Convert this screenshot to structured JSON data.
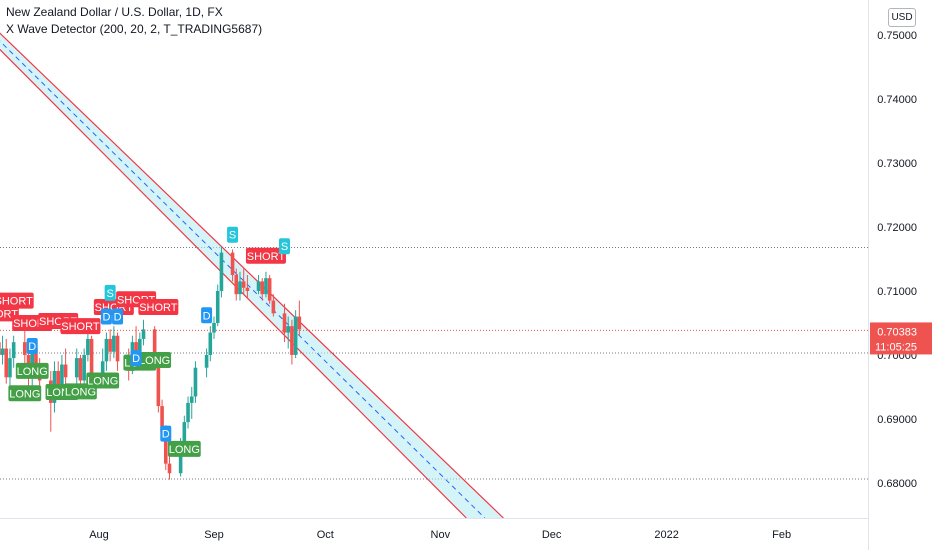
{
  "legend": {
    "symbol": "New Zealand Dollar / U.S. Dollar, 1D, FX",
    "indicator": "X Wave Detector (200, 20, 2, T_TRADING5687)"
  },
  "currency_button": "USD",
  "price_label": {
    "price": "0.70383",
    "countdown": "11:05:25"
  },
  "colors": {
    "up": "#26a69a",
    "down": "#ef5350",
    "channel_line": "#f23645",
    "channel_fill": "#b2ebf2",
    "channel_mid": "#2962ff",
    "short_tag": "#f23645",
    "long_tag": "#43a047",
    "s_tag": "#26c6da",
    "d_tag": "#2196f3"
  },
  "chart_data": {
    "type": "candlestick",
    "y_axis": {
      "range": [
        0.6745,
        0.7555
      ],
      "ticks": [
        "0.75000",
        "0.74000",
        "0.73000",
        "0.72000",
        "0.71000",
        "0.70000",
        "0.69000",
        "0.68000"
      ]
    },
    "x_axis": {
      "labels": [
        {
          "label": "Aug",
          "date": "2021-08-01"
        },
        {
          "label": "Sep",
          "date": "2021-09-01"
        },
        {
          "label": "Oct",
          "date": "2021-10-01"
        },
        {
          "label": "Nov",
          "date": "2021-11-01"
        },
        {
          "label": "Dec",
          "date": "2021-12-01"
        },
        {
          "label": "2022",
          "date": "2022-01-01"
        },
        {
          "label": "Feb",
          "date": "2022-02-01"
        }
      ]
    },
    "last_price": 0.70383,
    "horizontal_levels": [
      0.7168,
      0.7003,
      0.6806
    ],
    "candles": [
      {
        "date": "2021-07-05",
        "o": 0.702,
        "h": 0.7055,
        "l": 0.699,
        "c": 0.7
      },
      {
        "date": "2021-07-06",
        "o": 0.7,
        "h": 0.703,
        "l": 0.6985,
        "c": 0.701
      },
      {
        "date": "2021-07-07",
        "o": 0.701,
        "h": 0.7025,
        "l": 0.6955,
        "c": 0.6965
      },
      {
        "date": "2021-07-08",
        "o": 0.6965,
        "h": 0.701,
        "l": 0.695,
        "c": 0.6995
      },
      {
        "date": "2021-07-09",
        "o": 0.6995,
        "h": 0.703,
        "l": 0.698,
        "c": 0.702
      },
      {
        "date": "2021-07-12",
        "o": 0.702,
        "h": 0.704,
        "l": 0.6985,
        "c": 0.7
      },
      {
        "date": "2021-07-13",
        "o": 0.7,
        "h": 0.7015,
        "l": 0.695,
        "c": 0.6965
      },
      {
        "date": "2021-07-14",
        "o": 0.6965,
        "h": 0.702,
        "l": 0.6945,
        "c": 0.701
      },
      {
        "date": "2021-07-15",
        "o": 0.701,
        "h": 0.7025,
        "l": 0.697,
        "c": 0.6985
      },
      {
        "date": "2021-07-16",
        "o": 0.6985,
        "h": 0.6995,
        "l": 0.6945,
        "c": 0.696
      },
      {
        "date": "2021-07-19",
        "o": 0.696,
        "h": 0.6975,
        "l": 0.688,
        "c": 0.6925
      },
      {
        "date": "2021-07-20",
        "o": 0.6925,
        "h": 0.699,
        "l": 0.691,
        "c": 0.6975
      },
      {
        "date": "2021-07-21",
        "o": 0.6975,
        "h": 0.699,
        "l": 0.693,
        "c": 0.695
      },
      {
        "date": "2021-07-22",
        "o": 0.695,
        "h": 0.7,
        "l": 0.694,
        "c": 0.6985
      },
      {
        "date": "2021-07-23",
        "o": 0.6985,
        "h": 0.701,
        "l": 0.6955,
        "c": 0.6965
      },
      {
        "date": "2021-07-26",
        "o": 0.6965,
        "h": 0.701,
        "l": 0.695,
        "c": 0.6995
      },
      {
        "date": "2021-07-27",
        "o": 0.6995,
        "h": 0.7,
        "l": 0.694,
        "c": 0.696
      },
      {
        "date": "2021-07-28",
        "o": 0.696,
        "h": 0.701,
        "l": 0.6955,
        "c": 0.7
      },
      {
        "date": "2021-07-29",
        "o": 0.7,
        "h": 0.7035,
        "l": 0.699,
        "c": 0.7025
      },
      {
        "date": "2021-07-30",
        "o": 0.7025,
        "h": 0.703,
        "l": 0.695,
        "c": 0.6965
      },
      {
        "date": "2021-08-02",
        "o": 0.6965,
        "h": 0.701,
        "l": 0.6955,
        "c": 0.699
      },
      {
        "date": "2021-08-03",
        "o": 0.699,
        "h": 0.7035,
        "l": 0.6975,
        "c": 0.7025
      },
      {
        "date": "2021-08-04",
        "o": 0.7025,
        "h": 0.704,
        "l": 0.699,
        "c": 0.7005
      },
      {
        "date": "2021-08-05",
        "o": 0.7005,
        "h": 0.7045,
        "l": 0.6995,
        "c": 0.703
      },
      {
        "date": "2021-08-06",
        "o": 0.703,
        "h": 0.7035,
        "l": 0.6975,
        "c": 0.699
      },
      {
        "date": "2021-08-09",
        "o": 0.699,
        "h": 0.701,
        "l": 0.696,
        "c": 0.6975
      },
      {
        "date": "2021-08-10",
        "o": 0.6975,
        "h": 0.703,
        "l": 0.697,
        "c": 0.702
      },
      {
        "date": "2021-08-11",
        "o": 0.702,
        "h": 0.7045,
        "l": 0.699,
        "c": 0.7
      },
      {
        "date": "2021-08-12",
        "o": 0.7,
        "h": 0.7035,
        "l": 0.6995,
        "c": 0.7025
      },
      {
        "date": "2021-08-13",
        "o": 0.7025,
        "h": 0.7055,
        "l": 0.7015,
        "c": 0.704
      },
      {
        "date": "2021-08-16",
        "o": 0.704,
        "h": 0.7045,
        "l": 0.6985,
        "c": 0.6995
      },
      {
        "date": "2021-08-17",
        "o": 0.6995,
        "h": 0.7,
        "l": 0.691,
        "c": 0.692
      },
      {
        "date": "2021-08-18",
        "o": 0.692,
        "h": 0.693,
        "l": 0.6865,
        "c": 0.688
      },
      {
        "date": "2021-08-19",
        "o": 0.688,
        "h": 0.689,
        "l": 0.682,
        "c": 0.683
      },
      {
        "date": "2021-08-20",
        "o": 0.683,
        "h": 0.6845,
        "l": 0.6805,
        "c": 0.6815
      },
      {
        "date": "2021-08-23",
        "o": 0.6815,
        "h": 0.687,
        "l": 0.681,
        "c": 0.686
      },
      {
        "date": "2021-08-24",
        "o": 0.686,
        "h": 0.6905,
        "l": 0.685,
        "c": 0.6895
      },
      {
        "date": "2021-08-25",
        "o": 0.6895,
        "h": 0.6935,
        "l": 0.6885,
        "c": 0.6925
      },
      {
        "date": "2021-08-26",
        "o": 0.6925,
        "h": 0.695,
        "l": 0.69,
        "c": 0.6935
      },
      {
        "date": "2021-08-27",
        "o": 0.6935,
        "h": 0.699,
        "l": 0.6925,
        "c": 0.698
      },
      {
        "date": "2021-08-30",
        "o": 0.698,
        "h": 0.701,
        "l": 0.6965,
        "c": 0.7
      },
      {
        "date": "2021-08-31",
        "o": 0.7,
        "h": 0.7045,
        "l": 0.699,
        "c": 0.7035
      },
      {
        "date": "2021-09-01",
        "o": 0.7035,
        "h": 0.706,
        "l": 0.7025,
        "c": 0.705
      },
      {
        "date": "2021-09-02",
        "o": 0.705,
        "h": 0.711,
        "l": 0.7045,
        "c": 0.71
      },
      {
        "date": "2021-09-03",
        "o": 0.71,
        "h": 0.717,
        "l": 0.709,
        "c": 0.716
      },
      {
        "date": "2021-09-06",
        "o": 0.716,
        "h": 0.7165,
        "l": 0.7115,
        "c": 0.7125
      },
      {
        "date": "2021-09-07",
        "o": 0.7125,
        "h": 0.7135,
        "l": 0.7085,
        "c": 0.7095
      },
      {
        "date": "2021-09-08",
        "o": 0.7095,
        "h": 0.713,
        "l": 0.7085,
        "c": 0.7115
      },
      {
        "date": "2021-09-09",
        "o": 0.7115,
        "h": 0.7135,
        "l": 0.7095,
        "c": 0.7105
      },
      {
        "date": "2021-09-10",
        "o": 0.7105,
        "h": 0.7125,
        "l": 0.709,
        "c": 0.71
      },
      {
        "date": "2021-09-13",
        "o": 0.71,
        "h": 0.7125,
        "l": 0.7095,
        "c": 0.7115
      },
      {
        "date": "2021-09-14",
        "o": 0.7115,
        "h": 0.712,
        "l": 0.7085,
        "c": 0.7095
      },
      {
        "date": "2021-09-15",
        "o": 0.7095,
        "h": 0.713,
        "l": 0.709,
        "c": 0.712
      },
      {
        "date": "2021-09-16",
        "o": 0.712,
        "h": 0.7125,
        "l": 0.708,
        "c": 0.7085
      },
      {
        "date": "2021-09-17",
        "o": 0.7085,
        "h": 0.7095,
        "l": 0.706,
        "c": 0.7065
      },
      {
        "date": "2021-09-20",
        "o": 0.7065,
        "h": 0.708,
        "l": 0.702,
        "c": 0.7035
      },
      {
        "date": "2021-09-21",
        "o": 0.7035,
        "h": 0.706,
        "l": 0.701,
        "c": 0.7045
      },
      {
        "date": "2021-09-22",
        "o": 0.7045,
        "h": 0.7055,
        "l": 0.6985,
        "c": 0.7
      },
      {
        "date": "2021-09-23",
        "o": 0.7,
        "h": 0.707,
        "l": 0.6995,
        "c": 0.706
      },
      {
        "date": "2021-09-24",
        "o": 0.706,
        "h": 0.7085,
        "l": 0.703,
        "c": 0.704
      }
    ],
    "channel": {
      "upper": [
        {
          "date": "2021-06-26",
          "value": 0.7555
        },
        {
          "date": "2021-11-18",
          "value": 0.6745
        }
      ],
      "lower": [
        {
          "date": "2021-06-22",
          "value": 0.7555
        },
        {
          "date": "2021-11-08",
          "value": 0.6745
        }
      ],
      "middle": [
        {
          "date": "2021-06-24",
          "value": 0.7555
        },
        {
          "date": "2021-11-13",
          "value": 0.6745
        }
      ]
    },
    "annotations": [
      {
        "text": "SHORT",
        "kind": "short",
        "date": "2021-07-05",
        "price": 0.7065
      },
      {
        "text": "SHORT",
        "kind": "short",
        "date": "2021-07-09",
        "price": 0.7085
      },
      {
        "text": "SHORT",
        "kind": "short",
        "date": "2021-07-14",
        "price": 0.705
      },
      {
        "text": "SHORT",
        "kind": "short",
        "date": "2021-07-21",
        "price": 0.7053
      },
      {
        "text": "SHORT",
        "kind": "short",
        "date": "2021-07-27",
        "price": 0.7045
      },
      {
        "text": "SHORT",
        "kind": "short",
        "date": "2021-08-05",
        "price": 0.7075
      },
      {
        "text": "SHORT",
        "kind": "short",
        "date": "2021-08-11",
        "price": 0.7087
      },
      {
        "text": "SHORT",
        "kind": "short",
        "date": "2021-08-17",
        "price": 0.7075
      },
      {
        "text": "SHORT",
        "kind": "short",
        "date": "2021-09-15",
        "price": 0.7155
      },
      {
        "text": "LONG",
        "kind": "long",
        "date": "2021-07-14",
        "price": 0.6975
      },
      {
        "text": "LONG",
        "kind": "long",
        "date": "2021-07-12",
        "price": 0.694
      },
      {
        "text": "LONG",
        "kind": "long",
        "date": "2021-07-22",
        "price": 0.6942
      },
      {
        "text": "LONG",
        "kind": "long",
        "date": "2021-07-27",
        "price": 0.6943
      },
      {
        "text": "LONG",
        "kind": "long",
        "date": "2021-08-02",
        "price": 0.696
      },
      {
        "text": "LONG",
        "kind": "long",
        "date": "2021-08-12",
        "price": 0.6988
      },
      {
        "text": "LONG",
        "kind": "long",
        "date": "2021-08-16",
        "price": 0.6992
      },
      {
        "text": "LONG",
        "kind": "long",
        "date": "2021-08-24",
        "price": 0.6853
      },
      {
        "text": "D",
        "kind": "d",
        "date": "2021-07-14",
        "price": 0.7014
      },
      {
        "text": "D",
        "kind": "d",
        "date": "2021-08-03",
        "price": 0.706
      },
      {
        "text": "D",
        "kind": "d",
        "date": "2021-08-06",
        "price": 0.706
      },
      {
        "text": "D",
        "kind": "d",
        "date": "2021-08-11",
        "price": 0.6995
      },
      {
        "text": "D",
        "kind": "d",
        "date": "2021-08-19",
        "price": 0.6877
      },
      {
        "text": "D",
        "kind": "d",
        "date": "2021-08-30",
        "price": 0.7062
      },
      {
        "text": "S",
        "kind": "s",
        "date": "2021-08-04",
        "price": 0.7097
      },
      {
        "text": "S",
        "kind": "s",
        "date": "2021-09-06",
        "price": 0.7188
      },
      {
        "text": "S",
        "kind": "s",
        "date": "2021-09-20",
        "price": 0.717
      }
    ]
  }
}
